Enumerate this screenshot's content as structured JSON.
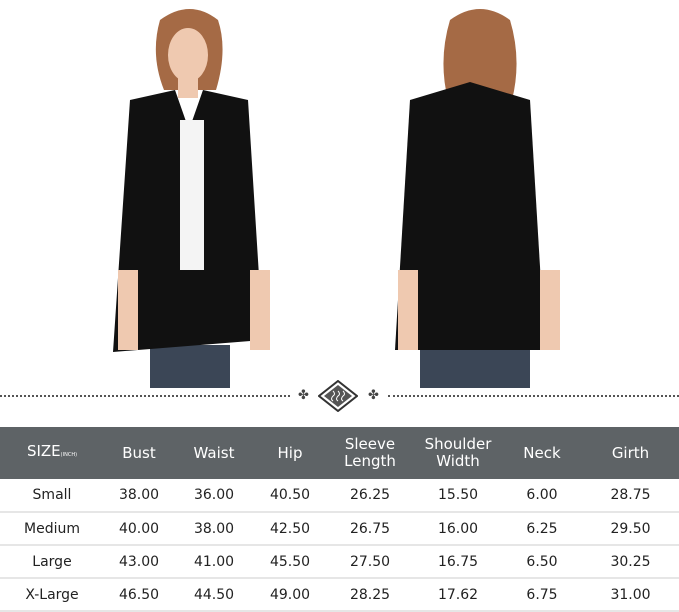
{
  "size_chart": {
    "headers": [
      {
        "label": "SIZE",
        "unit": "(INCH)"
      },
      {
        "label": "Bust"
      },
      {
        "label": "Waist"
      },
      {
        "label": "Hip"
      },
      {
        "label": "Sleeve Length"
      },
      {
        "label": "Shoulder Width"
      },
      {
        "label": "Neck"
      },
      {
        "label": "Girth"
      }
    ],
    "rows": [
      [
        "Small",
        "38.00",
        "36.00",
        "40.50",
        "26.25",
        "15.50",
        "6.00",
        "28.75"
      ],
      [
        "Medium",
        "40.00",
        "38.00",
        "42.50",
        "26.75",
        "16.00",
        "6.25",
        "29.50"
      ],
      [
        "Large",
        "43.00",
        "41.00",
        "45.50",
        "27.50",
        "16.75",
        "6.50",
        "30.25"
      ],
      [
        "X-Large",
        "46.50",
        "44.50",
        "49.00",
        "28.25",
        "17.62",
        "6.75",
        "31.00"
      ]
    ]
  },
  "colors": {
    "header_bg": "#5e6366",
    "jacket": "#111111"
  }
}
